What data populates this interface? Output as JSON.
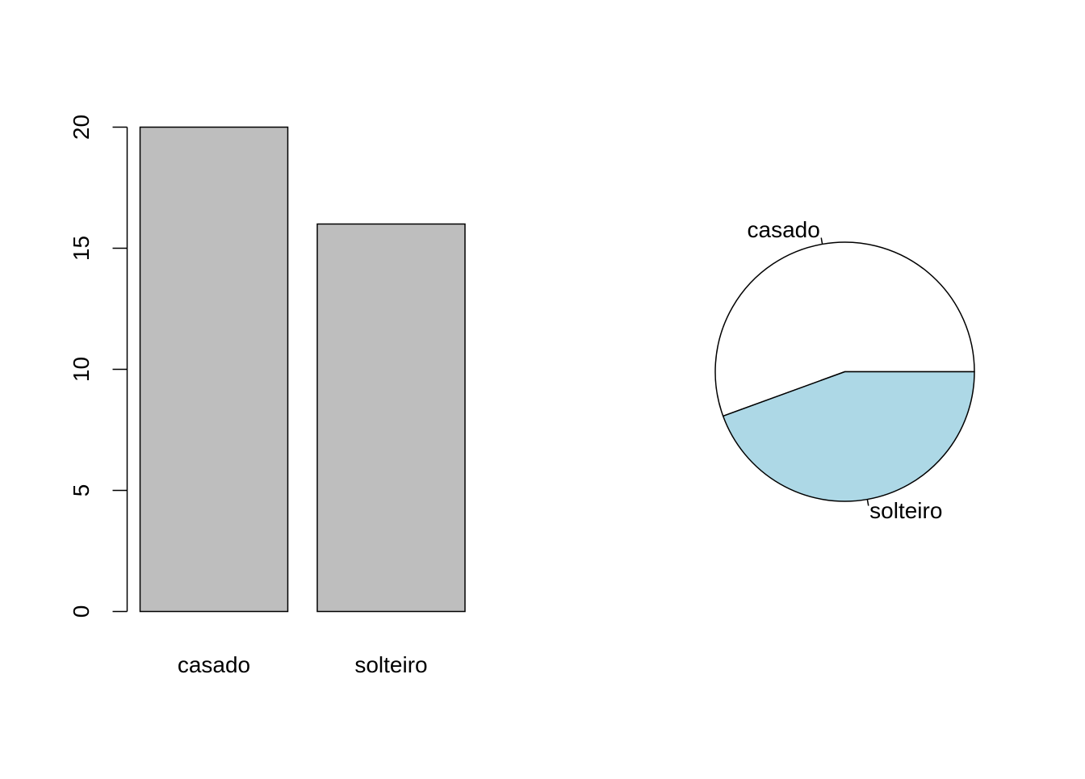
{
  "chart_data": [
    {
      "type": "bar",
      "categories": [
        "casado",
        "solteiro"
      ],
      "values": [
        20,
        16
      ],
      "ylim": [
        0,
        20
      ],
      "yticks": [
        "0",
        "5",
        "10",
        "15",
        "20"
      ],
      "bar_color": "#bebebe",
      "axis_color": "#000000"
    },
    {
      "type": "pie",
      "labels": [
        "casado",
        "solteiro"
      ],
      "values": [
        20,
        16
      ],
      "colors": [
        "#ffffff",
        "#add8e6"
      ],
      "start_angle_deg": 0,
      "direction": "counterclockwise"
    }
  ]
}
